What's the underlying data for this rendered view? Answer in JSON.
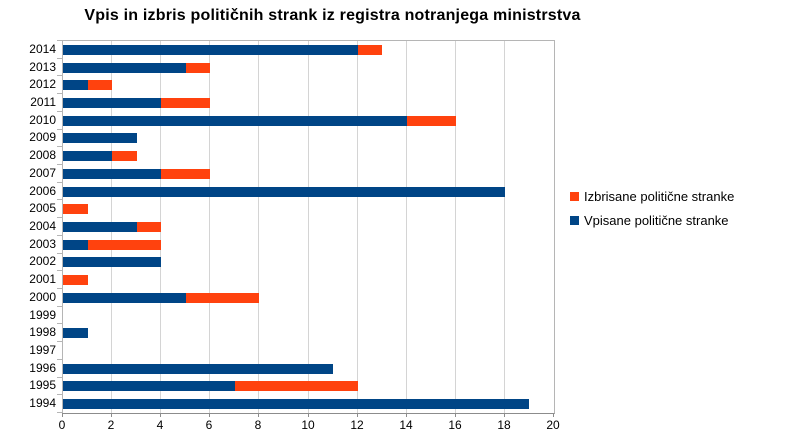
{
  "title": "Vpis in izbris političnih strank iz registra notranjega ministrstva",
  "legend": {
    "items": [
      {
        "label": "Izbrisane politične stranke",
        "color": "#ff420e",
        "series_key": "izbrisane"
      },
      {
        "label": "Vpisane politične stranke",
        "color": "#004586",
        "series_key": "vpisane"
      }
    ],
    "position": "right"
  },
  "chart_data": {
    "type": "bar",
    "orientation": "horizontal",
    "stacked": true,
    "title": "Vpis in izbris političnih strank iz registra notranjega ministrstva",
    "categories": [
      "2014",
      "2013",
      "2012",
      "2011",
      "2010",
      "2009",
      "2008",
      "2007",
      "2006",
      "2005",
      "2004",
      "2003",
      "2002",
      "2001",
      "2000",
      "1999",
      "1998",
      "1997",
      "1996",
      "1995",
      "1994"
    ],
    "series": [
      {
        "name": "Vpisane politične stranke",
        "key": "vpisane",
        "color": "#004586",
        "values": [
          12,
          5,
          1,
          4,
          14,
          3,
          2,
          4,
          18,
          0,
          3,
          1,
          4,
          0,
          5,
          0,
          1,
          0,
          11,
          7,
          19
        ]
      },
      {
        "name": "Izbrisane politične stranke",
        "key": "izbrisane",
        "color": "#ff420e",
        "values": [
          1,
          1,
          1,
          2,
          2,
          0,
          1,
          2,
          0,
          1,
          1,
          3,
          0,
          1,
          3,
          0,
          0,
          0,
          0,
          5,
          0
        ]
      }
    ],
    "xlabel": "",
    "ylabel": "",
    "xlim": [
      0,
      20
    ],
    "xticks": [
      0,
      2,
      4,
      6,
      8,
      10,
      12,
      14,
      16,
      18,
      20
    ],
    "grid": true,
    "grid_color": "#d4d4d4",
    "legend_position": "right",
    "bar_colors": {
      "vpisane": "#004586",
      "izbrisane": "#ff420e"
    }
  }
}
